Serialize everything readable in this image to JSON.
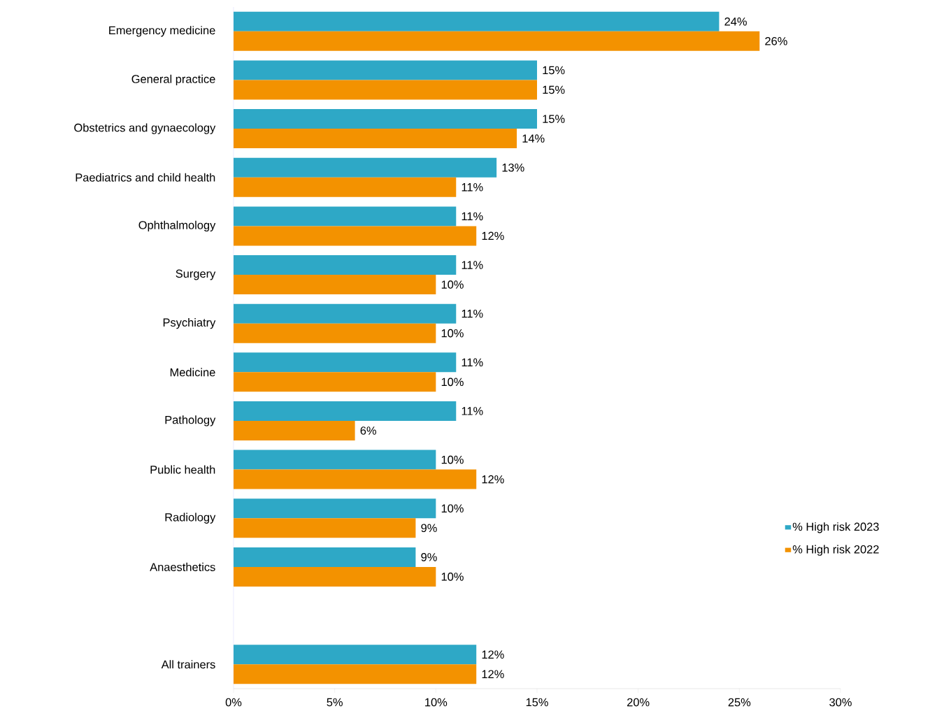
{
  "chart_data": {
    "type": "bar",
    "orientation": "horizontal",
    "categories": [
      "Emergency medicine",
      "General practice",
      "Obstetrics and gynaecology",
      "Paediatrics and child health",
      "Ophthalmology",
      "Surgery",
      "Psychiatry",
      "Medicine",
      "Pathology",
      "Public health",
      "Radiology",
      "Anaesthetics",
      null,
      "All trainers"
    ],
    "series": [
      {
        "name": "% High risk 2023",
        "color": "#2ea8c6",
        "values": [
          24,
          15,
          15,
          13,
          11,
          11,
          11,
          11,
          11,
          10,
          10,
          9,
          null,
          12
        ],
        "value_labels": [
          "24%",
          "15%",
          "15%",
          "13%",
          "11%",
          "11%",
          "11%",
          "11%",
          "11%",
          "10%",
          "10%",
          "9%",
          null,
          "12%"
        ]
      },
      {
        "name": "% High risk 2022",
        "color": "#f39200",
        "values": [
          26,
          15,
          14,
          11,
          12,
          10,
          10,
          10,
          6,
          12,
          9,
          10,
          null,
          12
        ],
        "value_labels": [
          "26%",
          "15%",
          "14%",
          "11%",
          "12%",
          "10%",
          "10%",
          "10%",
          "6%",
          "12%",
          "9%",
          "10%",
          null,
          "12%"
        ]
      }
    ],
    "xlim": [
      0,
      30
    ],
    "xticks": [
      {
        "value": 0,
        "label": "0%"
      },
      {
        "value": 5,
        "label": "5%"
      },
      {
        "value": 10,
        "label": "10%"
      },
      {
        "value": 15,
        "label": "15%"
      },
      {
        "value": 20,
        "label": "20%"
      },
      {
        "value": 25,
        "label": "25%"
      },
      {
        "value": 30,
        "label": "30%"
      }
    ],
    "legend": "right"
  }
}
